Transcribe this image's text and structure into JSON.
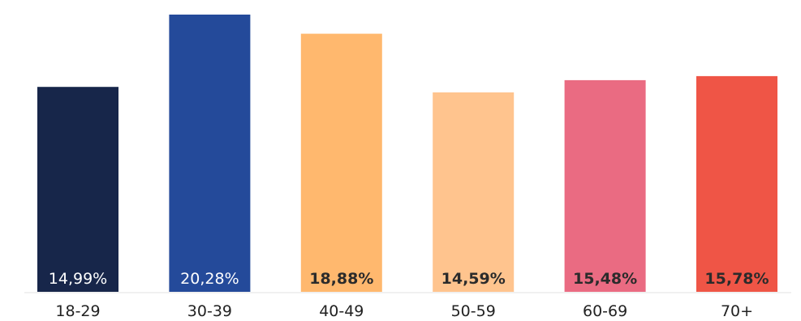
{
  "chart_data": {
    "type": "bar",
    "categories": [
      "18-29",
      "30-39",
      "40-49",
      "50-59",
      "60-69",
      "70+"
    ],
    "values": [
      14.99,
      20.28,
      18.88,
      14.59,
      15.48,
      15.78
    ],
    "data_labels": [
      "14,99%",
      "20,28%",
      "18,88%",
      "14,59%",
      "15,48%",
      "15,78%"
    ],
    "bar_colors": [
      "#17264a",
      "#244a9a",
      "#ffb86e",
      "#ffc48e",
      "#ea6b82",
      "#ef5546"
    ],
    "label_colors": [
      "#ffffff",
      "#ffffff",
      "#2b2b2b",
      "#2b2b2b",
      "#2b2b2b",
      "#2b2b2b"
    ],
    "label_bold": [
      false,
      false,
      true,
      true,
      true,
      true
    ],
    "title": "",
    "xlabel": "",
    "ylabel": "",
    "ylim": [
      0,
      21
    ],
    "grid": false,
    "legend": "none"
  }
}
